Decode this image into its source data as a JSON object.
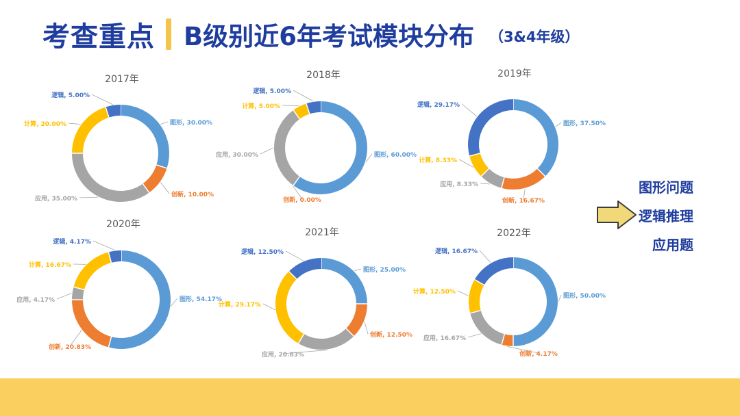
{
  "header": {
    "title": "考查重点",
    "subtitle": "B级别近6年考试模块分布",
    "grade": "（3&4年级）"
  },
  "side": {
    "items": [
      "图形问题",
      "逻辑推理",
      "应用题"
    ],
    "arrow_icon": "right-arrow-icon"
  },
  "colors": {
    "图形": "#5b9bd5",
    "创新": "#ed7d31",
    "应用": "#a5a5a5",
    "计算": "#ffc000",
    "逻辑": "#4472c4",
    "title_text": "#1f3d9e",
    "footer": "#fbcf5f"
  },
  "chart_data": [
    {
      "type": "pie",
      "title": "2017年",
      "order": [
        "图形",
        "创新",
        "应用",
        "计算",
        "逻辑"
      ],
      "values": [
        30.0,
        10.0,
        35.0,
        20.0,
        5.0
      ],
      "labels": [
        "图形, 30.00%",
        "创新, 10.00%",
        "应用, 35.00%",
        "计算, 20.00%",
        "逻辑, 5.00%"
      ]
    },
    {
      "type": "pie",
      "title": "2018年",
      "order": [
        "图形",
        "创新",
        "应用",
        "计算",
        "逻辑"
      ],
      "values": [
        60.0,
        0.0,
        30.0,
        5.0,
        5.0
      ],
      "labels": [
        "图形, 60.00%",
        "创新, 0.00%",
        "应用, 30.00%",
        "计算, 5.00%",
        "逻辑, 5.00%"
      ]
    },
    {
      "type": "pie",
      "title": "2019年",
      "order": [
        "图形",
        "创新",
        "应用",
        "计算",
        "逻辑"
      ],
      "values": [
        37.5,
        16.67,
        8.33,
        8.33,
        29.17
      ],
      "labels": [
        "图形, 37.50%",
        "创新, 16.67%",
        "应用, 8.33%",
        "计算, 8.33%",
        "逻辑, 29.17%"
      ]
    },
    {
      "type": "pie",
      "title": "2020年",
      "order": [
        "图形",
        "创新",
        "应用",
        "计算",
        "逻辑"
      ],
      "values": [
        54.17,
        20.83,
        4.17,
        16.67,
        4.17
      ],
      "labels": [
        "图形, 54.17%",
        "创新, 20.83%",
        "应用, 4.17%",
        "计算, 16.67%",
        "逻辑, 4.17%"
      ]
    },
    {
      "type": "pie",
      "title": "2021年",
      "order": [
        "图形",
        "创新",
        "应用",
        "计算",
        "逻辑"
      ],
      "values": [
        25.0,
        12.5,
        20.83,
        29.17,
        12.5
      ],
      "labels": [
        "图形, 25.00%",
        "创新, 12.50%",
        "应用, 20.83%",
        "计算, 29.17%",
        "逻辑, 12.50%"
      ]
    },
    {
      "type": "pie",
      "title": "2022年",
      "order": [
        "图形",
        "创新",
        "应用",
        "计算",
        "逻辑"
      ],
      "values": [
        50.0,
        4.17,
        16.67,
        12.5,
        16.67
      ],
      "labels": [
        "图形, 50.00%",
        "创新, 4.17%",
        "应用, 16.67%",
        "计算, 12.50%",
        "逻辑, 16.67%"
      ]
    }
  ]
}
